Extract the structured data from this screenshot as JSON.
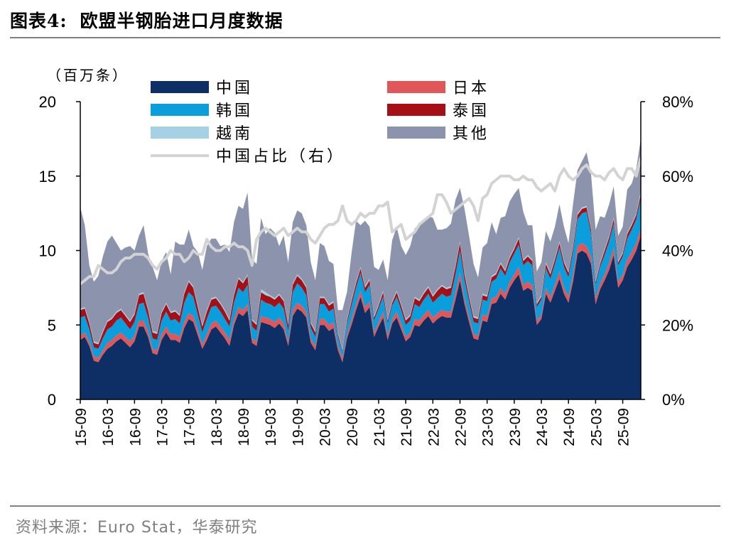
{
  "header": {
    "number": "图表4:",
    "title": "欧盟半钢胎进口月度数据"
  },
  "source": "资料来源：Euro Stat，华泰研究",
  "chart_data": {
    "type": "area",
    "stacked": true,
    "secondary_line": true,
    "unit_label": "（百万条）",
    "ylim_left": [
      0,
      20
    ],
    "yticks_left": [
      "0",
      "5",
      "10",
      "15",
      "20"
    ],
    "ylim_right": [
      0,
      80
    ],
    "yticks_right": [
      "0%",
      "20%",
      "40%",
      "60%",
      "80%"
    ],
    "x_tick_labels": [
      "15-09",
      "16-03",
      "16-09",
      "17-03",
      "17-09",
      "18-03",
      "18-09",
      "19-03",
      "19-09",
      "20-03",
      "20-09",
      "21-03",
      "21-09",
      "22-03",
      "22-09",
      "23-03",
      "23-09",
      "24-03",
      "24-09",
      "25-03",
      "25-09"
    ],
    "start_month": "2015-09",
    "legend": [
      "中国",
      "日本",
      "韩国",
      "泰国",
      "越南",
      "其他",
      "中国占比（右）"
    ],
    "colors": {
      "中国": "#0d2f66",
      "日本": "#e15759",
      "韩国": "#0a9fdc",
      "泰国": "#a50f15",
      "越南": "#a6d0e4",
      "其他": "#8b93ad",
      "中国占比（右）": "#d3d3d3"
    },
    "series": [
      {
        "name": "中国",
        "values": [
          4.0,
          4.2,
          3.6,
          2.6,
          2.5,
          3.0,
          3.4,
          3.6,
          3.9,
          4.1,
          3.8,
          3.5,
          3.9,
          4.9,
          4.9,
          4.2,
          3.1,
          3.0,
          4.0,
          4.5,
          4.0,
          4.0,
          3.8,
          4.8,
          5.4,
          5.2,
          4.3,
          3.4,
          4.0,
          4.7,
          4.9,
          4.5,
          4.1,
          3.6,
          5.0,
          5.8,
          5.6,
          6.0,
          3.8,
          3.6,
          5.2,
          5.1,
          5.0,
          4.8,
          5.1,
          4.7,
          3.6,
          5.6,
          6.1,
          5.9,
          5.5,
          3.8,
          3.3,
          5.0,
          5.0,
          4.6,
          4.8,
          3.3,
          2.5,
          4.1,
          5.0,
          6.0,
          6.9,
          5.8,
          6.2,
          4.2,
          4.9,
          5.5,
          4.0,
          5.1,
          5.5,
          4.7,
          3.9,
          4.2,
          5.0,
          4.9,
          5.3,
          5.6,
          5.1,
          5.4,
          5.6,
          5.5,
          5.5,
          6.7,
          8.0,
          6.4,
          5.2,
          4.1,
          4.0,
          5.3,
          5.2,
          6.4,
          6.5,
          7.1,
          6.7,
          7.5,
          8.0,
          8.4,
          7.3,
          7.5,
          7.3,
          5.0,
          5.4,
          7.1,
          6.5,
          7.3,
          8.1,
          7.1,
          6.5,
          7.9,
          9.8,
          10.0,
          9.8,
          9.1,
          6.4,
          7.4,
          8.0,
          8.7,
          9.7,
          7.5,
          8.0,
          8.9,
          9.4,
          10.0,
          11.0
        ]
      },
      {
        "name": "日本",
        "values": [
          0.3,
          0.3,
          0.3,
          0.3,
          0.3,
          0.3,
          0.4,
          0.4,
          0.4,
          0.4,
          0.4,
          0.4,
          0.4,
          0.4,
          0.4,
          0.4,
          0.3,
          0.3,
          0.4,
          0.4,
          0.4,
          0.4,
          0.4,
          0.4,
          0.4,
          0.4,
          0.4,
          0.3,
          0.4,
          0.4,
          0.4,
          0.4,
          0.4,
          0.4,
          0.4,
          0.4,
          0.4,
          0.4,
          0.3,
          0.3,
          0.4,
          0.4,
          0.4,
          0.4,
          0.4,
          0.4,
          0.3,
          0.4,
          0.4,
          0.4,
          0.4,
          0.3,
          0.3,
          0.4,
          0.4,
          0.4,
          0.4,
          0.3,
          0.3,
          0.3,
          0.4,
          0.4,
          0.4,
          0.4,
          0.4,
          0.3,
          0.3,
          0.4,
          0.3,
          0.3,
          0.4,
          0.4,
          0.3,
          0.3,
          0.4,
          0.4,
          0.4,
          0.4,
          0.4,
          0.4,
          0.4,
          0.4,
          0.4,
          0.5,
          0.5,
          0.4,
          0.4,
          0.3,
          0.3,
          0.4,
          0.4,
          0.4,
          0.4,
          0.4,
          0.4,
          0.4,
          0.4,
          0.5,
          0.4,
          0.4,
          0.4,
          0.3,
          0.3,
          0.4,
          0.4,
          0.4,
          0.5,
          0.4,
          0.4,
          0.5,
          0.5,
          0.5,
          0.5,
          0.5,
          0.4,
          0.4,
          0.4,
          0.5,
          0.5,
          0.4,
          0.4,
          0.5,
          0.5,
          0.5,
          0.5
        ]
      },
      {
        "name": "韩国",
        "values": [
          1.2,
          1.1,
          0.8,
          0.6,
          0.6,
          0.8,
          0.9,
          0.9,
          1.0,
          1.0,
          0.9,
          0.8,
          0.9,
          1.1,
          1.2,
          0.9,
          0.7,
          0.7,
          0.9,
          1.0,
          0.9,
          1.0,
          0.9,
          1.3,
          1.4,
          1.3,
          1.0,
          0.8,
          1.0,
          1.1,
          1.0,
          1.0,
          0.9,
          0.9,
          1.1,
          1.3,
          1.2,
          1.3,
          0.8,
          0.7,
          1.1,
          1.0,
          1.0,
          1.0,
          1.0,
          1.0,
          0.7,
          1.2,
          1.3,
          1.2,
          1.1,
          0.7,
          0.6,
          1.0,
          1.0,
          0.9,
          0.9,
          0.6,
          0.4,
          0.7,
          0.9,
          1.1,
          1.2,
          1.0,
          1.1,
          0.8,
          0.9,
          1.0,
          0.8,
          0.9,
          1.0,
          0.9,
          0.8,
          0.8,
          1.0,
          0.9,
          1.0,
          1.1,
          1.0,
          1.0,
          1.1,
          1.0,
          1.1,
          1.2,
          1.5,
          1.2,
          1.0,
          0.8,
          0.8,
          1.0,
          1.0,
          1.1,
          1.2,
          1.3,
          1.2,
          1.3,
          1.4,
          1.5,
          1.3,
          1.4,
          1.3,
          0.9,
          1.0,
          1.3,
          1.2,
          1.4,
          1.6,
          1.4,
          1.3,
          1.5,
          1.8,
          2.0,
          2.3,
          1.5,
          0.9,
          1.1,
          1.3,
          1.4,
          1.6,
          1.1,
          1.2,
          1.4,
          1.5,
          1.6,
          2.0
        ]
      },
      {
        "name": "泰国",
        "values": [
          0.5,
          0.5,
          0.4,
          0.3,
          0.3,
          0.4,
          0.5,
          0.5,
          0.5,
          0.5,
          0.5,
          0.5,
          0.5,
          0.6,
          0.6,
          0.5,
          0.4,
          0.4,
          0.5,
          0.5,
          0.5,
          0.5,
          0.5,
          0.6,
          0.7,
          0.6,
          0.5,
          0.4,
          0.5,
          0.5,
          0.5,
          0.5,
          0.5,
          0.4,
          0.5,
          0.6,
          0.6,
          0.6,
          0.4,
          0.4,
          0.5,
          0.5,
          0.5,
          0.5,
          0.5,
          0.5,
          0.4,
          0.5,
          0.5,
          0.5,
          0.5,
          0.3,
          0.3,
          0.4,
          0.4,
          0.4,
          0.4,
          0.2,
          0.1,
          0.2,
          0.3,
          0.3,
          0.3,
          0.3,
          0.3,
          0.2,
          0.2,
          0.3,
          0.2,
          0.2,
          0.3,
          0.3,
          0.3,
          0.3,
          0.4,
          0.4,
          0.4,
          0.4,
          0.4,
          0.5,
          0.5,
          0.5,
          0.5,
          0.5,
          0.5,
          0.4,
          0.3,
          0.3,
          0.3,
          0.3,
          0.3,
          0.3,
          0.3,
          0.3,
          0.3,
          0.3,
          0.3,
          0.4,
          0.3,
          0.3,
          0.3,
          0.2,
          0.2,
          0.3,
          0.3,
          0.3,
          0.3,
          0.3,
          0.3,
          0.3,
          0.3,
          0.3,
          0.3,
          0.3,
          0.2,
          0.2,
          0.3,
          0.3,
          0.3,
          0.2,
          0.2,
          0.3,
          0.3,
          0.3,
          0.3
        ]
      },
      {
        "name": "越南",
        "values": [
          0.1,
          0.1,
          0.1,
          0.1,
          0.1,
          0.1,
          0.1,
          0.1,
          0.1,
          0.1,
          0.1,
          0.1,
          0.1,
          0.1,
          0.1,
          0.1,
          0.1,
          0.1,
          0.1,
          0.1,
          0.1,
          0.1,
          0.1,
          0.1,
          0.1,
          0.1,
          0.1,
          0.1,
          0.1,
          0.1,
          0.1,
          0.1,
          0.1,
          0.1,
          0.1,
          0.1,
          0.1,
          0.1,
          0.1,
          0.1,
          0.2,
          0.2,
          0.1,
          0.1,
          0.1,
          0.1,
          0.1,
          0.1,
          0.1,
          0.1,
          0.1,
          0.1,
          0.1,
          0.1,
          0.1,
          0.1,
          0.1,
          0.1,
          0.1,
          0.1,
          0.1,
          0.1,
          0.1,
          0.1,
          0.1,
          0.1,
          0.1,
          0.1,
          0.1,
          0.1,
          0.1,
          0.1,
          0.1,
          0.1,
          0.1,
          0.1,
          0.1,
          0.1,
          0.1,
          0.1,
          0.1,
          0.1,
          0.1,
          0.1,
          0.1,
          0.1,
          0.1,
          0.1,
          0.1,
          0.1,
          0.1,
          0.1,
          0.1,
          0.1,
          0.1,
          0.1,
          0.1,
          0.1,
          0.1,
          0.1,
          0.1,
          0.1,
          0.1,
          0.1,
          0.1,
          0.1,
          0.1,
          0.1,
          0.1,
          0.1,
          0.1,
          0.1,
          0.1,
          0.1,
          0.1,
          0.1,
          0.1,
          0.1,
          0.1,
          0.1,
          0.1,
          0.1,
          0.1,
          0.1,
          0.2
        ]
      },
      {
        "name": "其他",
        "values": [
          6.8,
          5.5,
          3.8,
          4.0,
          4.5,
          5.0,
          5.3,
          5.5,
          4.6,
          3.9,
          4.5,
          5.0,
          4.2,
          3.9,
          4.5,
          3.7,
          4.3,
          3.5,
          3.4,
          3.4,
          2.5,
          4.6,
          4.7,
          3.2,
          3.4,
          2.7,
          3.6,
          3.7,
          4.3,
          4.0,
          3.9,
          3.8,
          4.4,
          4.5,
          4.8,
          4.8,
          4.9,
          5.5,
          4.0,
          4.0,
          4.8,
          3.9,
          4.5,
          4.4,
          3.2,
          4.3,
          4.1,
          4.1,
          4.3,
          4.4,
          4.1,
          4.0,
          3.4,
          3.6,
          3.4,
          2.9,
          2.5,
          1.5,
          2.6,
          1.8,
          3.1,
          4.1,
          2.8,
          4.4,
          3.5,
          3.3,
          2.3,
          2.1,
          2.6,
          4.1,
          4.3,
          3.9,
          4.3,
          4.6,
          4.6,
          5.0,
          4.9,
          4.7,
          5.2,
          4.0,
          3.7,
          4.0,
          4.2,
          4.4,
          3.6,
          4.3,
          4.0,
          3.5,
          2.7,
          3.1,
          3.5,
          3.6,
          2.6,
          3.0,
          3.6,
          3.7,
          3.6,
          3.3,
          3.2,
          2.0,
          2.3,
          2.1,
          2.2,
          2.1,
          2.1,
          2.1,
          2.5,
          2.3,
          1.9,
          2.8,
          2.9,
          3.1,
          3.6,
          3.6,
          3.4,
          3.1,
          2.1,
          2.1,
          2.1,
          1.7,
          1.7,
          2.9,
          2.7,
          3.0,
          3.5
        ]
      },
      {
        "name": "中国占比（右）",
        "axis": "right",
        "values": [
          31,
          32,
          33,
          33,
          36,
          35,
          34,
          34,
          35,
          37,
          38,
          38,
          39,
          39,
          39,
          38,
          36,
          35,
          37,
          38,
          40,
          39,
          39,
          37,
          38,
          40,
          39,
          39,
          43,
          41,
          40,
          40,
          41,
          41,
          42,
          41,
          41,
          40,
          36,
          43,
          45,
          46,
          45,
          44,
          45,
          46,
          44,
          45,
          46,
          45,
          45,
          43,
          42,
          44,
          46,
          47,
          47,
          48,
          52,
          48,
          47,
          48,
          50,
          49,
          50,
          50,
          52,
          52,
          53,
          45,
          46,
          47,
          43,
          44,
          45,
          47,
          48,
          49,
          50,
          55,
          55,
          53,
          50,
          51,
          52,
          53,
          54,
          52,
          48,
          54,
          55,
          58,
          59,
          60,
          60,
          60,
          59,
          59,
          60,
          59,
          59,
          57,
          56,
          57,
          58,
          56,
          60,
          62,
          60,
          59,
          60,
          62,
          63,
          61,
          60,
          60,
          59,
          61,
          62,
          60,
          59,
          62,
          62,
          60,
          65
        ]
      }
    ]
  }
}
